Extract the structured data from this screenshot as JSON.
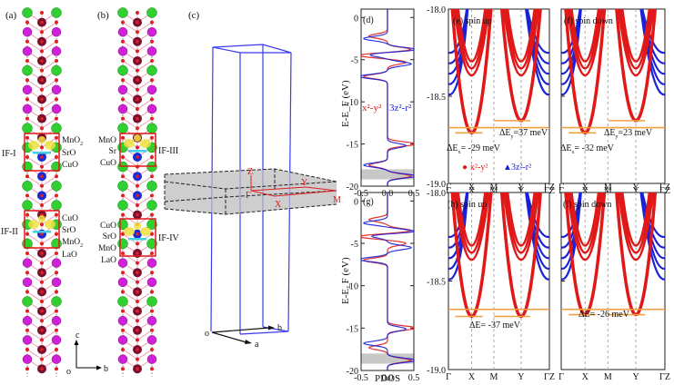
{
  "panels": {
    "a": {
      "label": "(a)",
      "interfaces": [
        {
          "name": "IF-I",
          "layers": [
            "MnO",
            "SrO",
            "CuO"
          ],
          "subs": [
            "2",
            "",
            ""
          ]
        },
        {
          "name": "IF-II",
          "layers": [
            "CuO",
            "SrO",
            "MnO",
            "LaO"
          ],
          "subs": [
            "",
            "",
            "2",
            ""
          ]
        }
      ],
      "axes": {
        "origin": "o",
        "up": "c",
        "right": "b"
      }
    },
    "b": {
      "label": "(b)",
      "interfaces": [
        {
          "name": "IF-III",
          "layers": [
            "MnO",
            "Sr",
            "CuO"
          ],
          "subs": [
            "2",
            "",
            "2"
          ]
        },
        {
          "name": "IF-IV",
          "layers": [
            "CuO",
            "SrO",
            "MnO",
            "LaO"
          ],
          "subs": [
            "2",
            "",
            "2",
            ""
          ]
        }
      ]
    },
    "c": {
      "label": "(c)",
      "bz_points": [
        "Z",
        "Γ",
        "X",
        "Y",
        "M"
      ],
      "axes": {
        "origin": "o",
        "a": "a",
        "b": "b"
      }
    },
    "d": {
      "label": "(d)"
    },
    "g": {
      "label": "(g)"
    },
    "e": {
      "label": "(e) spin up",
      "annot1": "ΔE",
      "annot1_sub": "y",
      "annot1_val": "=37 meV",
      "annot2": "ΔE",
      "annot2_sub": "x",
      "annot2_val": "= -29 meV"
    },
    "f": {
      "label": "(f) spin down",
      "annot1": "ΔE",
      "annot1_sub": "y",
      "annot1_val": "=23 meV",
      "annot2": "ΔE",
      "annot2_sub": "x",
      "annot2_val": "= -32 meV"
    },
    "h": {
      "label": "(h) spin up",
      "annot": "ΔE= -37 meV"
    },
    "i": {
      "label": "(i) spin down",
      "annot": "ΔE= -26 meV"
    }
  },
  "legend": {
    "red_label": "x²-y²",
    "blue_label": "3z²-r²",
    "red_marker": "●",
    "blue_marker": "▲"
  },
  "colors": {
    "red": "#e01818",
    "blue": "#1a22d8",
    "orange": "#f0a040",
    "green": "#2fd02f",
    "magenta": "#d020d8",
    "maroon": "#7a1030"
  },
  "chart_data": [
    {
      "type": "line",
      "panel": "d",
      "title": "(d)",
      "xlabel": "",
      "ylabel": "E-E_F (eV)",
      "xlim": [
        -0.5,
        0.5
      ],
      "ylim": [
        -20,
        1
      ],
      "xticks": [
        "-0.5",
        "0.0",
        "0.5"
      ],
      "yticks": [
        "0",
        "-5",
        "-10",
        "-15",
        "-20"
      ],
      "legend": [
        "x²-y²",
        "3z²-r²"
      ],
      "series": [
        {
          "name": "x²-y²",
          "color": "#e01818",
          "peaks_eV": [
            -2.2,
            -3.8,
            -4.5,
            -5.3,
            -7.0,
            -15.0,
            -17.5,
            -18.8
          ]
        },
        {
          "name": "3z²-r²",
          "color": "#1a22d8",
          "peaks_eV": [
            -2.5,
            -3.8,
            -4.4,
            -5.5,
            -7.0,
            -15.2,
            -17.5,
            -18.8
          ]
        }
      ],
      "shaded_band_eV": [
        -19.2,
        -18.0
      ]
    },
    {
      "type": "line",
      "panel": "g",
      "title": "(g)",
      "xlabel": "PDOS",
      "ylabel": "E-E_F (eV)",
      "xlim": [
        -0.5,
        0.5
      ],
      "ylim": [
        -20,
        1
      ],
      "xticks": [
        "-0.5",
        "0.0",
        "0.5"
      ],
      "yticks": [
        "0",
        "-5",
        "-10",
        "-15",
        "-20"
      ],
      "series": [
        {
          "name": "x²-y²",
          "color": "#e01818",
          "peaks_eV": [
            -2.2,
            -3.5,
            -4.2,
            -5.0,
            -7.0,
            -15.0,
            -17.3,
            -18.8
          ]
        },
        {
          "name": "3z²-r²",
          "color": "#1a22d8",
          "peaks_eV": [
            -2.6,
            -3.6,
            -4.1,
            -5.5,
            -6.9,
            -15.1,
            -16.8,
            -18.8
          ]
        }
      ],
      "shaded_band_eV": [
        -19.2,
        -18.0
      ]
    },
    {
      "type": "line",
      "panel": "e",
      "title": "(e) spin up",
      "ylim": [
        -19.0,
        -18.0
      ],
      "yticks": [
        "-18.0",
        "-18.5",
        "-19.0"
      ],
      "xticks": [
        "Γ",
        "X",
        "M",
        "Y",
        "ΓZ"
      ],
      "series": [
        {
          "name": "x²-y² band min at X",
          "color": "#e01818",
          "min_eV": -18.71
        },
        {
          "name": "x²-y² band min at Y",
          "color": "#e01818",
          "min_eV": -18.64
        }
      ],
      "reference_level_eV": -18.68,
      "annotations": [
        "ΔEy=37 meV",
        "ΔEx= -29 meV"
      ]
    },
    {
      "type": "line",
      "panel": "f",
      "title": "(f) spin down",
      "ylim": [
        -19.0,
        -18.0
      ],
      "xticks": [
        "Γ",
        "X",
        "M",
        "Y",
        "ΓZ"
      ],
      "series": [
        {
          "name": "x²-y² band min at X",
          "color": "#e01818",
          "min_eV": -18.71
        },
        {
          "name": "x²-y² band min at Y",
          "color": "#e01818",
          "min_eV": -18.64
        }
      ],
      "reference_level_eV": -18.68,
      "annotations": [
        "ΔEy=23 meV",
        "ΔEx= -32 meV"
      ]
    },
    {
      "type": "line",
      "panel": "h",
      "title": "(h) spin up",
      "ylim": [
        -19.0,
        -18.0
      ],
      "yticks": [
        "-18.0",
        "-18.5",
        "-19.0"
      ],
      "xticks": [
        "Γ",
        "X",
        "M",
        "Y",
        "ΓZ"
      ],
      "series": [
        {
          "name": "x²-y² band min at X",
          "color": "#e01818",
          "min_eV": -18.7
        },
        {
          "name": "x²-y² band min at Y",
          "color": "#e01818",
          "min_eV": -18.7
        }
      ],
      "reference_level_eV": -18.66,
      "annotations": [
        "ΔE= -37 meV"
      ]
    },
    {
      "type": "line",
      "panel": "i",
      "title": "(i) spin down",
      "ylim": [
        -19.0,
        -18.0
      ],
      "xticks": [
        "Γ",
        "X",
        "M",
        "Y",
        "ΓZ"
      ],
      "series": [
        {
          "name": "x²-y² band min at X",
          "color": "#e01818",
          "min_eV": -18.69
        },
        {
          "name": "x²-y² band min at Y",
          "color": "#e01818",
          "min_eV": -18.69
        }
      ],
      "reference_level_eV": -18.66,
      "annotations": [
        "ΔE= -26 meV"
      ]
    }
  ]
}
